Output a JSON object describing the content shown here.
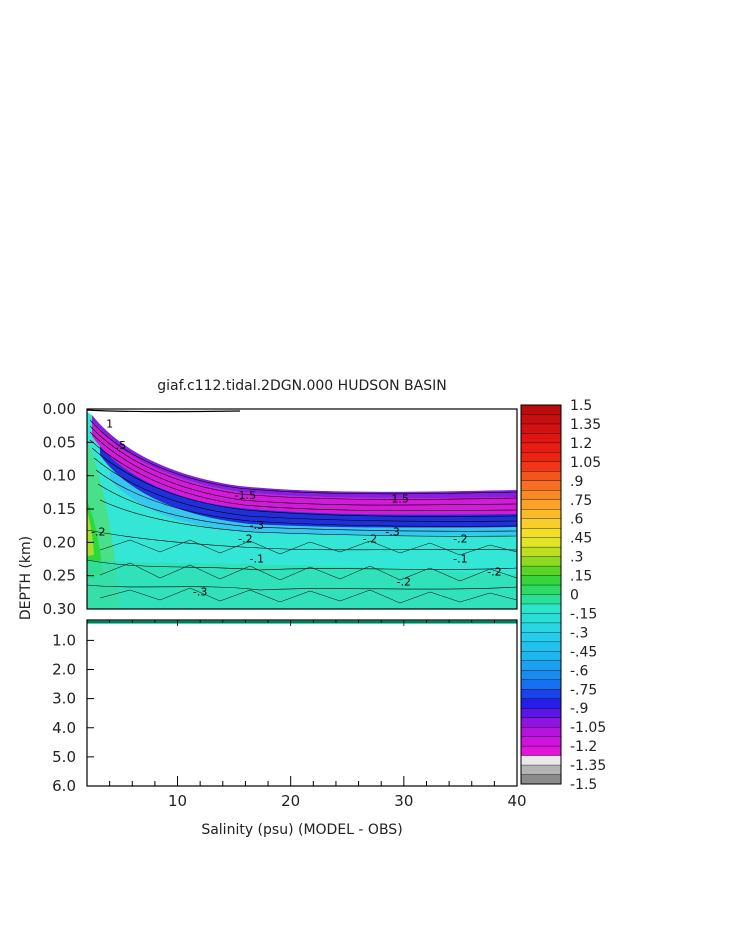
{
  "chart_data": {
    "type": "heatmap",
    "title": "giaf.c112.tidal.2DGN.000 HUDSON BASIN",
    "xlabel": "Salinity (psu) (MODEL - OBS)",
    "ylabel": "DEPTH (km)",
    "xlim": [
      2,
      40
    ],
    "x_ticks": [
      "10",
      "20",
      "30",
      "40"
    ],
    "upper_panel": {
      "ylim": [
        0.0,
        0.3
      ],
      "y_ticks": [
        "0.00",
        "0.05",
        "0.10",
        "0.15",
        "0.20",
        "0.25",
        "0.30"
      ]
    },
    "lower_panel": {
      "ylim": [
        0.3,
        6.0
      ],
      "y_ticks": [
        "1.0",
        "2.0",
        "3.0",
        "4.0",
        "5.0",
        "6.0"
      ]
    },
    "colorbar": {
      "min": -1.5,
      "max": 1.5,
      "step": 0.075,
      "labels": [
        "1.5",
        "1.35",
        "1.2",
        "1.05",
        ".9",
        ".75",
        ".6",
        ".45",
        ".3",
        ".15",
        "0",
        "-.15",
        "-.3",
        "-.45",
        "-.6",
        "-.75",
        "-.9",
        "-1.05",
        "-1.2",
        "-1.35",
        "-1.5"
      ]
    },
    "contour_labels": [
      {
        "text": "1",
        "x": 4.0,
        "y": 0.028
      },
      {
        "text": ".5",
        "x": 5.0,
        "y": 0.06
      },
      {
        "text": "-1.5",
        "x": 16.0,
        "y": 0.135
      },
      {
        "text": "-1.5",
        "x": 29.5,
        "y": 0.14
      },
      {
        "text": "-.2",
        "x": 3.0,
        "y": 0.19
      },
      {
        "text": "-.2",
        "x": 16.0,
        "y": 0.2
      },
      {
        "text": "-.3",
        "x": 17.0,
        "y": 0.18
      },
      {
        "text": "-.2",
        "x": 27.0,
        "y": 0.2
      },
      {
        "text": "-.3",
        "x": 29.0,
        "y": 0.19
      },
      {
        "text": "-.2",
        "x": 35.0,
        "y": 0.2
      },
      {
        "text": "-.2",
        "x": 38.0,
        "y": 0.25
      },
      {
        "text": "-.1",
        "x": 17.0,
        "y": 0.23
      },
      {
        "text": "-.2",
        "x": 30.0,
        "y": 0.265
      },
      {
        "text": "-.3",
        "x": 12.0,
        "y": 0.28
      },
      {
        "text": "-.1",
        "x": 35.0,
        "y": 0.23
      }
    ]
  }
}
